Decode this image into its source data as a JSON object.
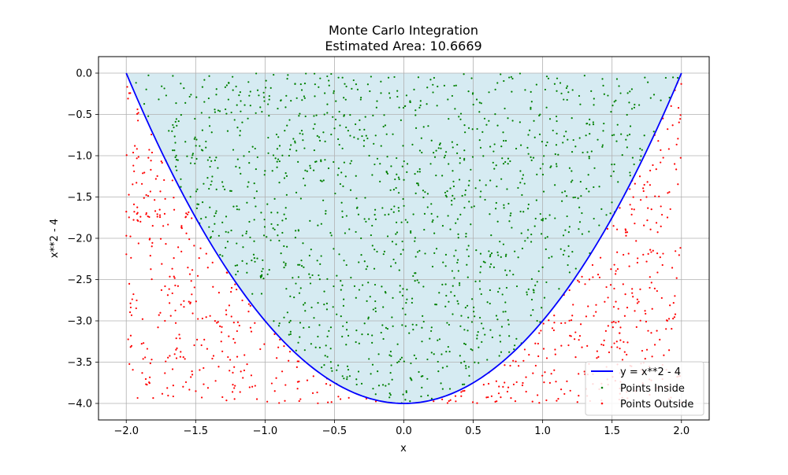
{
  "chart_data": {
    "type": "scatter",
    "title": "Monte Carlo Integration",
    "subtitle": "Estimated Area: 10.6669",
    "xlabel": "x",
    "ylabel": "x**2 - 4",
    "xlim": [
      -2.2,
      2.2
    ],
    "ylim": [
      -4.2,
      0.2
    ],
    "grid": true,
    "legend_position": "lower-right",
    "x_ticks": [
      -2.0,
      -1.5,
      -1.0,
      -0.5,
      0.0,
      0.5,
      1.0,
      1.5,
      2.0
    ],
    "x_tick_labels": [
      "−2.0",
      "−1.5",
      "−1.0",
      "−0.5",
      "0.0",
      "0.5",
      "1.0",
      "1.5",
      "2.0"
    ],
    "y_ticks": [
      0.0,
      -0.5,
      -1.0,
      -1.5,
      -2.0,
      -2.5,
      -3.0,
      -3.5,
      -4.0
    ],
    "y_tick_labels": [
      "0.0",
      "−0.5",
      "−1.0",
      "−1.5",
      "−2.0",
      "−2.5",
      "−3.0",
      "−3.5",
      "−4.0"
    ],
    "curve": {
      "label": "y = x**2 - 4",
      "function": "x**2 - 4",
      "x_range": [
        -2,
        2
      ],
      "color": "#0000ff"
    },
    "shaded_region": {
      "between": [
        "x**2 - 4",
        0
      ],
      "x_range": [
        -2,
        2
      ],
      "color": "#add8e6"
    },
    "scatter_series": [
      {
        "name": "Points Inside",
        "color": "#008000",
        "sample_domain": {
          "x": [
            -2,
            2
          ],
          "y": [
            -4,
            0
          ]
        },
        "condition": "y >= x**2 - 4",
        "approx_count": 1300
      },
      {
        "name": "Points Outside",
        "color": "#ff0000",
        "sample_domain": {
          "x": [
            -2,
            2
          ],
          "y": [
            -4,
            0
          ]
        },
        "condition": "y < x**2 - 4",
        "approx_count": 700
      }
    ]
  }
}
